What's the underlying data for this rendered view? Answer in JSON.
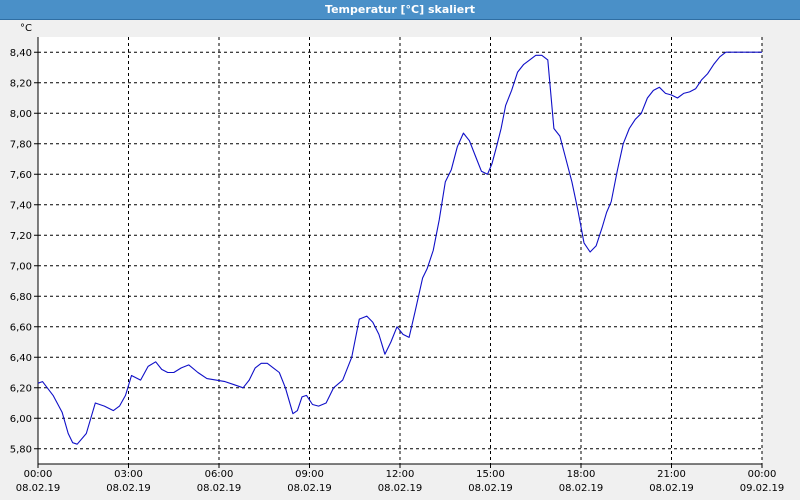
{
  "window": {
    "title": "Temperatur [°C] skaliert"
  },
  "colors": {
    "title_bar": "#4a90c8",
    "line": "#1010c8",
    "grid": "#000000",
    "background": "#ffffff"
  },
  "chart_data": {
    "type": "line",
    "title": "Temperatur [°C] skaliert",
    "ylabel": "°C",
    "xlabel": "",
    "ylim": [
      5.7,
      8.5
    ],
    "xlim": [
      0,
      24
    ],
    "grid": true,
    "yticks": [
      {
        "value": 5.8,
        "label": "5,80"
      },
      {
        "value": 6.0,
        "label": "6,00"
      },
      {
        "value": 6.2,
        "label": "6,20"
      },
      {
        "value": 6.4,
        "label": "6,40"
      },
      {
        "value": 6.6,
        "label": "6,60"
      },
      {
        "value": 6.8,
        "label": "6,80"
      },
      {
        "value": 7.0,
        "label": "7,00"
      },
      {
        "value": 7.2,
        "label": "7,20"
      },
      {
        "value": 7.4,
        "label": "7,40"
      },
      {
        "value": 7.6,
        "label": "7,60"
      },
      {
        "value": 7.8,
        "label": "7,80"
      },
      {
        "value": 8.0,
        "label": "8,00"
      },
      {
        "value": 8.2,
        "label": "8,20"
      },
      {
        "value": 8.4,
        "label": "8,40"
      }
    ],
    "xticks": [
      {
        "value": 0,
        "time": "00:00",
        "date": "08.02.19"
      },
      {
        "value": 3,
        "time": "03:00",
        "date": "08.02.19"
      },
      {
        "value": 6,
        "time": "06:00",
        "date": "08.02.19"
      },
      {
        "value": 9,
        "time": "09:00",
        "date": "08.02.19"
      },
      {
        "value": 12,
        "time": "12:00",
        "date": "08.02.19"
      },
      {
        "value": 15,
        "time": "15:00",
        "date": "08.02.19"
      },
      {
        "value": 18,
        "time": "18:00",
        "date": "08.02.19"
      },
      {
        "value": 21,
        "time": "21:00",
        "date": "08.02.19"
      },
      {
        "value": 24,
        "time": "00:00",
        "date": "09.02.19"
      }
    ],
    "series": [
      {
        "x": [
          0.0,
          0.15,
          0.5,
          0.8,
          1.0,
          1.15,
          1.3,
          1.6,
          1.9,
          2.2,
          2.5,
          2.7,
          2.9,
          3.1,
          3.4,
          3.65,
          3.9,
          4.1,
          4.3,
          4.5,
          4.75,
          5.0,
          5.3,
          5.6,
          5.9,
          6.2,
          6.5,
          6.8,
          7.0,
          7.2,
          7.4,
          7.6,
          7.8,
          8.0,
          8.2,
          8.45,
          8.6,
          8.75,
          8.9,
          9.1,
          9.3,
          9.55,
          9.8,
          10.1,
          10.4,
          10.65,
          10.9,
          11.1,
          11.3,
          11.5,
          11.7,
          11.9,
          12.1,
          12.3,
          12.5,
          12.75,
          12.9,
          13.1,
          13.3,
          13.5,
          13.7,
          13.9,
          14.1,
          14.3,
          14.5,
          14.7,
          14.9,
          15.05,
          15.2,
          15.35,
          15.5,
          15.7,
          15.9,
          16.1,
          16.3,
          16.5,
          16.7,
          16.9,
          17.1,
          17.3,
          17.5,
          17.7,
          17.9,
          18.1,
          18.3,
          18.5,
          18.7,
          18.85,
          19.0,
          19.2,
          19.4,
          19.6,
          19.8,
          20.0,
          20.2,
          20.4,
          20.6,
          20.8,
          21.0,
          21.2,
          21.4,
          21.6,
          21.8,
          22.0,
          22.2,
          22.4,
          22.6,
          22.8,
          23.0,
          23.2,
          23.4,
          23.6,
          23.8,
          24.0
        ],
        "values": [
          6.23,
          6.24,
          6.15,
          6.04,
          5.9,
          5.84,
          5.83,
          5.9,
          6.1,
          6.08,
          6.05,
          6.08,
          6.15,
          6.28,
          6.25,
          6.34,
          6.37,
          6.32,
          6.3,
          6.3,
          6.33,
          6.35,
          6.3,
          6.26,
          6.25,
          6.24,
          6.22,
          6.2,
          6.25,
          6.33,
          6.36,
          6.36,
          6.33,
          6.3,
          6.2,
          6.03,
          6.05,
          6.14,
          6.15,
          6.09,
          6.08,
          6.1,
          6.2,
          6.25,
          6.4,
          6.65,
          6.67,
          6.63,
          6.55,
          6.42,
          6.5,
          6.6,
          6.55,
          6.53,
          6.7,
          6.92,
          6.98,
          7.1,
          7.3,
          7.55,
          7.63,
          7.78,
          7.87,
          7.82,
          7.72,
          7.62,
          7.6,
          7.67,
          7.78,
          7.9,
          8.05,
          8.15,
          8.27,
          8.32,
          8.35,
          8.38,
          8.38,
          8.35,
          7.9,
          7.85,
          7.7,
          7.55,
          7.36,
          7.15,
          7.09,
          7.13,
          7.25,
          7.35,
          7.42,
          7.62,
          7.8,
          7.9,
          7.96,
          8.0,
          8.1,
          8.15,
          8.17,
          8.13,
          8.12,
          8.1,
          8.13,
          8.14,
          8.16,
          8.22,
          8.26,
          8.32,
          8.37,
          8.4,
          8.4,
          8.4,
          8.4,
          8.4,
          8.4,
          8.4
        ]
      }
    ]
  }
}
